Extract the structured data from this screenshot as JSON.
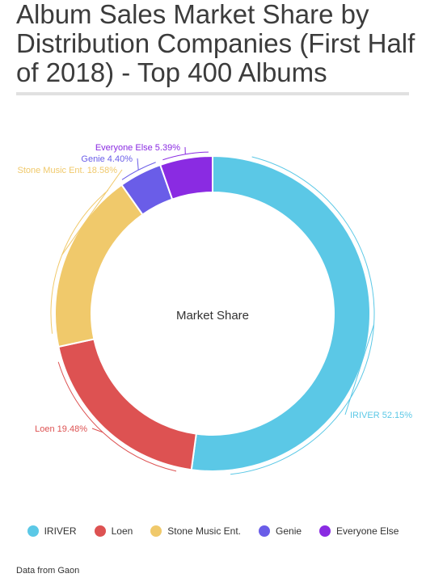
{
  "title": "Album Sales Market Share by Distribution Companies (First Half of 2018) - Top 400 Albums",
  "source": "Data from Gaon",
  "chart_data": {
    "type": "pie",
    "center_label": "Market Share",
    "slices": [
      {
        "name": "IRIVER",
        "value": 52.15,
        "label": "IRIVER 52.15%",
        "color": "#5bc8e6"
      },
      {
        "name": "Loen",
        "value": 19.48,
        "label": "Loen 19.48%",
        "color": "#dd5252"
      },
      {
        "name": "Stone Music Ent.",
        "value": 18.58,
        "label": "Stone Music Ent. 18.58%",
        "color": "#f0c96b"
      },
      {
        "name": "Genie",
        "value": 4.4,
        "label": "Genie 4.40%",
        "color": "#6a5de8"
      },
      {
        "name": "Everyone Else",
        "value": 5.39,
        "label": "Everyone Else 5.39%",
        "color": "#8a2be2"
      }
    ]
  }
}
